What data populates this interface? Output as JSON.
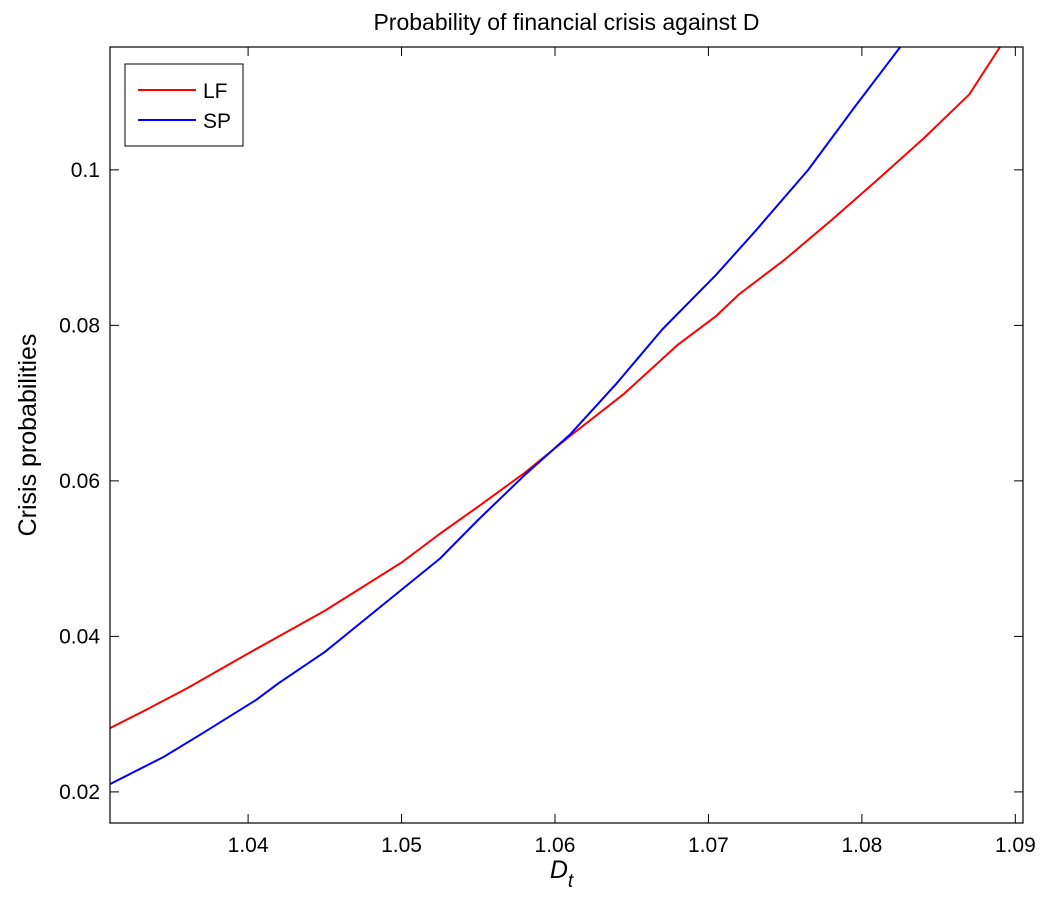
{
  "chart_data": {
    "type": "line",
    "title": "Probability of financial crisis against D",
    "xlabel": "D",
    "xlabel_subscript": "t",
    "ylabel": "Crisis probabilities",
    "xlim": [
      1.031,
      1.0905
    ],
    "ylim": [
      0.016,
      0.1158
    ],
    "x_ticks": [
      1.04,
      1.05,
      1.06,
      1.07,
      1.08,
      1.09
    ],
    "x_tick_labels": [
      "1.04",
      "1.05",
      "1.06",
      "1.07",
      "1.08",
      "1.09"
    ],
    "y_ticks": [
      0.02,
      0.04,
      0.06,
      0.08,
      0.1
    ],
    "y_tick_labels": [
      "0.02",
      "0.04",
      "0.06",
      "0.08",
      "0.1"
    ],
    "grid": false,
    "legend": "top-left",
    "series": [
      {
        "name": "LF",
        "color": "#ff0000",
        "points": [
          [
            1.031,
            0.0282
          ],
          [
            1.033,
            0.0302
          ],
          [
            1.036,
            0.0333
          ],
          [
            1.04,
            0.0378
          ],
          [
            1.045,
            0.0433
          ],
          [
            1.05,
            0.0495
          ],
          [
            1.0525,
            0.0532
          ],
          [
            1.055,
            0.0567
          ],
          [
            1.058,
            0.061
          ],
          [
            1.061,
            0.0658
          ],
          [
            1.0645,
            0.0712
          ],
          [
            1.068,
            0.0775
          ],
          [
            1.0705,
            0.0812
          ],
          [
            1.072,
            0.084
          ],
          [
            1.075,
            0.0885
          ],
          [
            1.078,
            0.0935
          ],
          [
            1.081,
            0.0987
          ],
          [
            1.084,
            0.104
          ],
          [
            1.087,
            0.1097
          ],
          [
            1.089,
            0.1158
          ]
        ]
      },
      {
        "name": "SP",
        "color": "#0000ff",
        "points": [
          [
            1.031,
            0.021
          ],
          [
            1.0345,
            0.0245
          ],
          [
            1.037,
            0.0275
          ],
          [
            1.0405,
            0.0318
          ],
          [
            1.042,
            0.034
          ],
          [
            1.045,
            0.038
          ],
          [
            1.048,
            0.0428
          ],
          [
            1.0525,
            0.05
          ],
          [
            1.055,
            0.055
          ],
          [
            1.058,
            0.0607
          ],
          [
            1.061,
            0.066
          ],
          [
            1.064,
            0.0725
          ],
          [
            1.067,
            0.0795
          ],
          [
            1.0705,
            0.0865
          ],
          [
            1.073,
            0.092
          ],
          [
            1.0765,
            0.1
          ],
          [
            1.0795,
            0.108
          ],
          [
            1.0825,
            0.1158
          ]
        ]
      }
    ]
  }
}
